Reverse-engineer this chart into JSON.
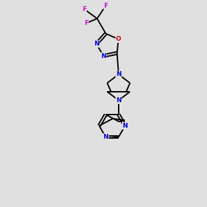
{
  "background_color": "#e0e0e0",
  "atom_colors": {
    "N": "#0000cc",
    "O": "#cc0000",
    "F": "#cc00cc",
    "C": "#000000"
  },
  "bond_color": "#000000",
  "bond_width": 1.4,
  "figsize": [
    3.0,
    3.0
  ],
  "dpi": 100,
  "xlim": [
    0,
    10
  ],
  "ylim": [
    0,
    13
  ],
  "font_size": 6.5
}
